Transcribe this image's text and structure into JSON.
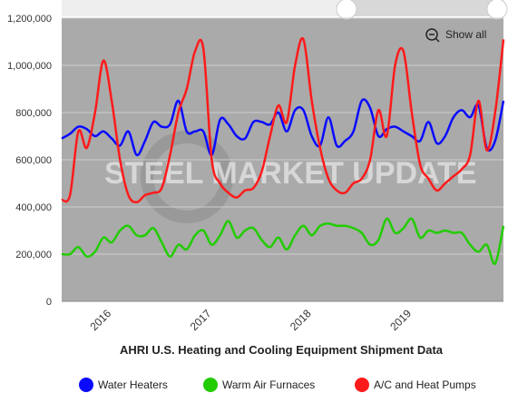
{
  "chart_data": {
    "type": "line",
    "title": "AHRI U.S. Heating and Cooling Equipment Shipment Data",
    "watermark": "STEEL MARKET UPDATE",
    "button": "Show all",
    "categories": [
      null,
      null,
      null,
      null,
      null,
      null,
      "2016",
      null,
      null,
      null,
      null,
      null,
      null,
      null,
      null,
      null,
      null,
      null,
      "2017",
      null,
      null,
      null,
      null,
      null,
      null,
      null,
      null,
      null,
      null,
      null,
      "2018",
      null,
      null,
      null,
      null,
      null,
      null,
      null,
      null,
      null,
      null,
      null,
      "2019",
      null,
      null,
      null,
      null,
      null,
      null,
      null,
      null,
      null,
      null,
      null
    ],
    "series": [
      {
        "name": "Water Heaters",
        "color": "#0a0aff",
        "values": [
          690000,
          710000,
          740000,
          730000,
          700000,
          720000,
          690000,
          660000,
          720000,
          620000,
          680000,
          760000,
          740000,
          750000,
          850000,
          720000,
          720000,
          720000,
          620000,
          770000,
          750000,
          700000,
          690000,
          760000,
          760000,
          750000,
          800000,
          720000,
          810000,
          810000,
          700000,
          660000,
          780000,
          660000,
          680000,
          720000,
          850000,
          820000,
          700000,
          730000,
          740000,
          720000,
          700000,
          680000,
          760000,
          670000,
          700000,
          780000,
          810000,
          780000,
          830000,
          650000,
          680000,
          850000
        ]
      },
      {
        "name": "Warm Air Furnaces",
        "color": "#22cc00",
        "values": [
          200000,
          200000,
          230000,
          190000,
          210000,
          270000,
          250000,
          300000,
          320000,
          280000,
          280000,
          310000,
          250000,
          190000,
          240000,
          220000,
          280000,
          300000,
          240000,
          280000,
          340000,
          270000,
          300000,
          310000,
          260000,
          230000,
          270000,
          220000,
          280000,
          320000,
          280000,
          320000,
          330000,
          320000,
          320000,
          310000,
          290000,
          240000,
          260000,
          350000,
          290000,
          310000,
          350000,
          270000,
          300000,
          290000,
          300000,
          290000,
          290000,
          240000,
          210000,
          240000,
          160000,
          320000
        ]
      },
      {
        "name": "A/C and Heat Pumps",
        "color": "#ff1a1a",
        "values": [
          430000,
          450000,
          720000,
          650000,
          800000,
          1020000,
          850000,
          600000,
          450000,
          420000,
          450000,
          460000,
          480000,
          620000,
          800000,
          900000,
          1060000,
          1070000,
          600000,
          500000,
          460000,
          440000,
          470000,
          480000,
          550000,
          700000,
          830000,
          760000,
          1000000,
          1110000,
          850000,
          650000,
          520000,
          470000,
          460000,
          500000,
          520000,
          600000,
          810000,
          700000,
          1000000,
          1060000,
          800000,
          580000,
          520000,
          470000,
          500000,
          530000,
          560000,
          620000,
          850000,
          640000,
          800000,
          1110000
        ]
      }
    ],
    "ylim": [
      0,
      1200000
    ],
    "yticks": [
      0,
      {
        "value": 200000,
        "label": "200,000"
      },
      {
        "value": 400000,
        "label": "400,000"
      },
      {
        "value": 600000,
        "label": "600,000"
      },
      {
        "value": 800000,
        "label": "800,000"
      },
      {
        "value": 1000000,
        "label": "1,000,000"
      },
      {
        "value": 1200000,
        "label": "1,200,000"
      }
    ],
    "grid": true,
    "legend": "bottom"
  }
}
